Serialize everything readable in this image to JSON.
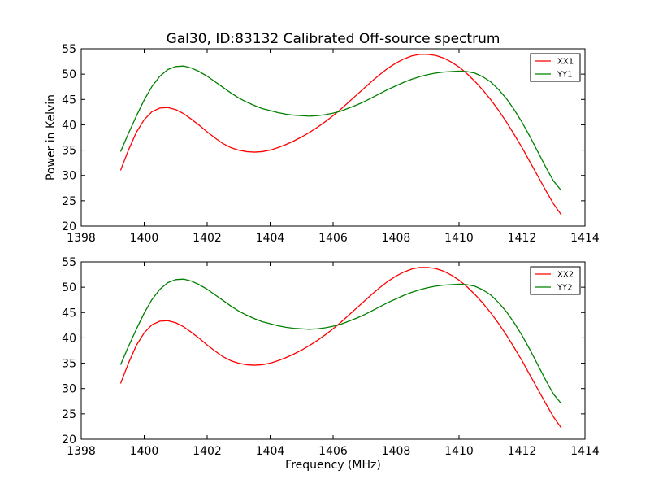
{
  "figure": {
    "title": "Gal30, ID:83132 Calibrated Off-source spectrum"
  },
  "chart_data": [
    {
      "type": "line",
      "title": "Gal30, ID:83132 Calibrated Off-source spectrum",
      "xlabel": "",
      "ylabel": "Power in Kelvin",
      "xlim": [
        1398,
        1414
      ],
      "ylim": [
        20,
        55
      ],
      "xticks": [
        "1398",
        "1400",
        "1402",
        "1404",
        "1406",
        "1408",
        "1410",
        "1412",
        "1414"
      ],
      "yticks": [
        "20",
        "25",
        "30",
        "35",
        "40",
        "45",
        "50",
        "55"
      ],
      "grid": false,
      "legend_position": "top-right",
      "series": [
        {
          "name": "XX1",
          "color": "#ff0000",
          "x": [
            1399.25,
            1399.5,
            1399.75,
            1400.0,
            1400.25,
            1400.5,
            1400.75,
            1401.0,
            1401.25,
            1401.5,
            1401.75,
            1402.0,
            1402.25,
            1402.5,
            1402.75,
            1403.0,
            1403.25,
            1403.5,
            1403.75,
            1404.0,
            1404.25,
            1404.5,
            1404.75,
            1405.0,
            1405.25,
            1405.5,
            1405.75,
            1406.0,
            1406.25,
            1406.5,
            1406.75,
            1407.0,
            1407.25,
            1407.5,
            1407.75,
            1408.0,
            1408.25,
            1408.5,
            1408.75,
            1409.0,
            1409.25,
            1409.5,
            1409.75,
            1410.0,
            1410.25,
            1410.5,
            1410.75,
            1411.0,
            1411.25,
            1411.5,
            1411.75,
            1412.0,
            1412.25,
            1412.5,
            1412.75,
            1413.0,
            1413.25
          ],
          "values": [
            31.0,
            35.0,
            38.5,
            41.0,
            42.6,
            43.3,
            43.4,
            43.0,
            42.2,
            41.1,
            39.9,
            38.6,
            37.4,
            36.3,
            35.5,
            35.0,
            34.7,
            34.6,
            34.7,
            35.0,
            35.5,
            36.1,
            36.8,
            37.6,
            38.5,
            39.5,
            40.6,
            41.8,
            43.1,
            44.5,
            45.9,
            47.3,
            48.7,
            50.0,
            51.2,
            52.2,
            53.0,
            53.6,
            53.9,
            53.9,
            53.7,
            53.2,
            52.4,
            51.4,
            50.1,
            48.6,
            46.9,
            45.0,
            42.9,
            40.6,
            38.1,
            35.5,
            32.7,
            29.9,
            27.1,
            24.4,
            22.2
          ]
        },
        {
          "name": "YY1",
          "color": "#008000",
          "x": [
            1399.25,
            1399.5,
            1399.75,
            1400.0,
            1400.25,
            1400.5,
            1400.75,
            1401.0,
            1401.25,
            1401.5,
            1401.75,
            1402.0,
            1402.25,
            1402.5,
            1402.75,
            1403.0,
            1403.25,
            1403.5,
            1403.75,
            1404.0,
            1404.25,
            1404.5,
            1404.75,
            1405.0,
            1405.25,
            1405.5,
            1405.75,
            1406.0,
            1406.25,
            1406.5,
            1406.75,
            1407.0,
            1407.25,
            1407.5,
            1407.75,
            1408.0,
            1408.25,
            1408.5,
            1408.75,
            1409.0,
            1409.25,
            1409.5,
            1409.75,
            1410.0,
            1410.25,
            1410.5,
            1410.75,
            1411.0,
            1411.25,
            1411.5,
            1411.75,
            1412.0,
            1412.25,
            1412.5,
            1412.75,
            1413.0,
            1413.25
          ],
          "values": [
            34.7,
            38.3,
            41.7,
            44.9,
            47.6,
            49.6,
            50.9,
            51.5,
            51.6,
            51.2,
            50.5,
            49.6,
            48.5,
            47.4,
            46.3,
            45.3,
            44.5,
            43.8,
            43.2,
            42.8,
            42.4,
            42.1,
            41.9,
            41.8,
            41.7,
            41.8,
            42.0,
            42.3,
            42.7,
            43.3,
            43.9,
            44.6,
            45.4,
            46.2,
            47.0,
            47.7,
            48.4,
            49.0,
            49.5,
            49.9,
            50.2,
            50.4,
            50.5,
            50.6,
            50.5,
            50.2,
            49.5,
            48.5,
            47.0,
            45.2,
            43.0,
            40.5,
            37.7,
            34.7,
            31.7,
            28.9,
            27.0
          ]
        }
      ]
    },
    {
      "type": "line",
      "title": "",
      "xlabel": "Frequency (MHz)",
      "ylabel": "",
      "xlim": [
        1398,
        1414
      ],
      "ylim": [
        20,
        55
      ],
      "xticks": [
        "1398",
        "1400",
        "1402",
        "1404",
        "1406",
        "1408",
        "1410",
        "1412",
        "1414"
      ],
      "yticks": [
        "20",
        "25",
        "30",
        "35",
        "40",
        "45",
        "50",
        "55"
      ],
      "grid": false,
      "legend_position": "top-right",
      "series": [
        {
          "name": "XX2",
          "color": "#ff0000",
          "x": [
            1399.25,
            1399.5,
            1399.75,
            1400.0,
            1400.25,
            1400.5,
            1400.75,
            1401.0,
            1401.25,
            1401.5,
            1401.75,
            1402.0,
            1402.25,
            1402.5,
            1402.75,
            1403.0,
            1403.25,
            1403.5,
            1403.75,
            1404.0,
            1404.25,
            1404.5,
            1404.75,
            1405.0,
            1405.25,
            1405.5,
            1405.75,
            1406.0,
            1406.25,
            1406.5,
            1406.75,
            1407.0,
            1407.25,
            1407.5,
            1407.75,
            1408.0,
            1408.25,
            1408.5,
            1408.75,
            1409.0,
            1409.25,
            1409.5,
            1409.75,
            1410.0,
            1410.25,
            1410.5,
            1410.75,
            1411.0,
            1411.25,
            1411.5,
            1411.75,
            1412.0,
            1412.25,
            1412.5,
            1412.75,
            1413.0,
            1413.25
          ],
          "values": [
            31.0,
            35.0,
            38.5,
            41.0,
            42.6,
            43.3,
            43.4,
            43.0,
            42.2,
            41.1,
            39.9,
            38.6,
            37.4,
            36.3,
            35.5,
            35.0,
            34.7,
            34.6,
            34.7,
            35.0,
            35.5,
            36.1,
            36.8,
            37.6,
            38.5,
            39.5,
            40.6,
            41.8,
            43.1,
            44.5,
            45.9,
            47.3,
            48.7,
            50.0,
            51.2,
            52.2,
            53.0,
            53.6,
            53.9,
            53.9,
            53.7,
            53.2,
            52.4,
            51.4,
            50.1,
            48.6,
            46.9,
            45.0,
            42.9,
            40.6,
            38.1,
            35.5,
            32.7,
            29.9,
            27.1,
            24.4,
            22.2
          ]
        },
        {
          "name": "YY2",
          "color": "#008000",
          "x": [
            1399.25,
            1399.5,
            1399.75,
            1400.0,
            1400.25,
            1400.5,
            1400.75,
            1401.0,
            1401.25,
            1401.5,
            1401.75,
            1402.0,
            1402.25,
            1402.5,
            1402.75,
            1403.0,
            1403.25,
            1403.5,
            1403.75,
            1404.0,
            1404.25,
            1404.5,
            1404.75,
            1405.0,
            1405.25,
            1405.5,
            1405.75,
            1406.0,
            1406.25,
            1406.5,
            1406.75,
            1407.0,
            1407.25,
            1407.5,
            1407.75,
            1408.0,
            1408.25,
            1408.5,
            1408.75,
            1409.0,
            1409.25,
            1409.5,
            1409.75,
            1410.0,
            1410.25,
            1410.5,
            1410.75,
            1411.0,
            1411.25,
            1411.5,
            1411.75,
            1412.0,
            1412.25,
            1412.5,
            1412.75,
            1413.0,
            1413.25
          ],
          "values": [
            34.7,
            38.3,
            41.7,
            44.9,
            47.6,
            49.6,
            50.9,
            51.5,
            51.6,
            51.2,
            50.5,
            49.6,
            48.5,
            47.4,
            46.3,
            45.3,
            44.5,
            43.8,
            43.2,
            42.8,
            42.4,
            42.1,
            41.9,
            41.8,
            41.7,
            41.8,
            42.0,
            42.3,
            42.7,
            43.3,
            43.9,
            44.6,
            45.4,
            46.2,
            47.0,
            47.7,
            48.4,
            49.0,
            49.5,
            49.9,
            50.2,
            50.4,
            50.5,
            50.6,
            50.5,
            50.2,
            49.5,
            48.5,
            47.0,
            45.2,
            43.0,
            40.5,
            37.7,
            34.7,
            31.7,
            28.9,
            27.0
          ]
        }
      ]
    }
  ]
}
